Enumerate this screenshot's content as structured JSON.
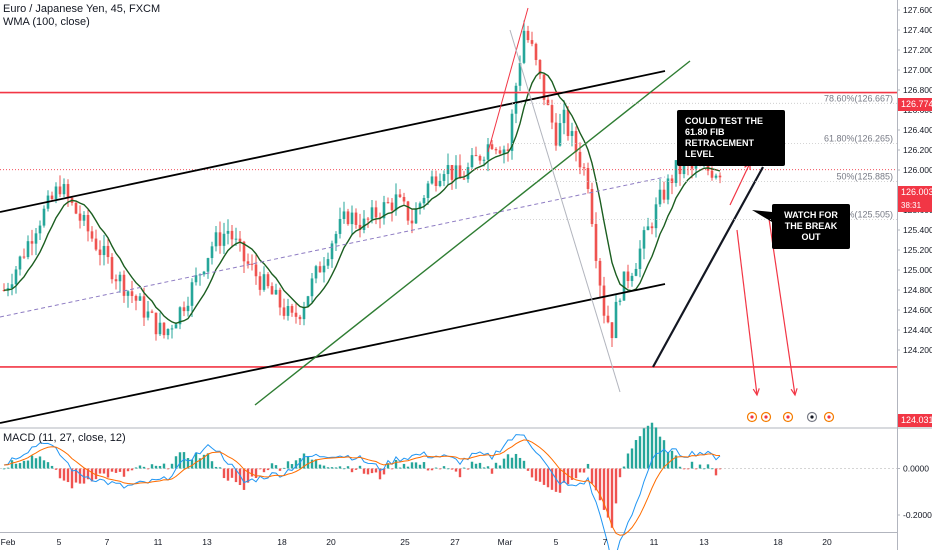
{
  "header": {
    "symbol_line": "Euro / Japanese Yen, 45, FXCM",
    "indicator_line": "WMA (100, close)",
    "macd_line": "MACD (11, 27, close, 12)"
  },
  "chart_data": [
    {
      "type": "candlestick",
      "title": "Euro / Japanese Yen, 45, FXCM",
      "x_tick_labels": [
        "Feb",
        "5",
        "7",
        "11",
        "13",
        "18",
        "20",
        "25",
        "27",
        "Mar",
        "5",
        "7",
        "11",
        "13",
        "18",
        "20"
      ],
      "y_tick_labels": [
        "127.600",
        "127.400",
        "127.200",
        "127.000",
        "126.800",
        "126.600",
        "126.400",
        "126.200",
        "126.000",
        "125.800",
        "125.600",
        "125.400",
        "125.200",
        "125.000",
        "124.800",
        "124.600",
        "124.400",
        "124.200"
      ],
      "ylim": [
        124.0,
        127.7
      ],
      "approx_close_path": [
        [
          0,
          124.8
        ],
        [
          4,
          125.1
        ],
        [
          8,
          125.45
        ],
        [
          12,
          125.7
        ],
        [
          14,
          125.85
        ],
        [
          16,
          125.7
        ],
        [
          20,
          125.45
        ],
        [
          24,
          125.2
        ],
        [
          28,
          124.95
        ],
        [
          32,
          124.75
        ],
        [
          36,
          124.55
        ],
        [
          40,
          124.35
        ],
        [
          44,
          124.6
        ],
        [
          48,
          124.9
        ],
        [
          52,
          125.25
        ],
        [
          56,
          125.4
        ],
        [
          60,
          125.1
        ],
        [
          64,
          124.9
        ],
        [
          68,
          124.7
        ],
        [
          72,
          124.5
        ],
        [
          74,
          124.6
        ],
        [
          78,
          124.95
        ],
        [
          82,
          125.3
        ],
        [
          86,
          125.55
        ],
        [
          90,
          125.45
        ],
        [
          94,
          125.6
        ],
        [
          98,
          125.7
        ],
        [
          102,
          125.5
        ],
        [
          106,
          125.85
        ],
        [
          110,
          126.05
        ],
        [
          114,
          125.9
        ],
        [
          118,
          126.1
        ],
        [
          122,
          126.3
        ],
        [
          126,
          126.2
        ],
        [
          128,
          126.85
        ],
        [
          130,
          127.4
        ],
        [
          132,
          127.2
        ],
        [
          134,
          126.9
        ],
        [
          136,
          126.6
        ],
        [
          138,
          126.35
        ],
        [
          140,
          126.5
        ],
        [
          142,
          126.3
        ],
        [
          144,
          126.1
        ],
        [
          146,
          125.9
        ],
        [
          148,
          125.2
        ],
        [
          150,
          124.6
        ],
        [
          152,
          124.4
        ],
        [
          154,
          124.8
        ],
        [
          156,
          124.95
        ],
        [
          158,
          125.1
        ],
        [
          160,
          125.3
        ],
        [
          162,
          125.5
        ],
        [
          164,
          125.7
        ],
        [
          166,
          125.85
        ],
        [
          168,
          126.0
        ]
      ],
      "wma_label": "WMA (100, close)",
      "horizontal_levels": [
        {
          "price": 126.774,
          "label": "126.774",
          "color": "#f23645"
        },
        {
          "price": 124.031,
          "label": "124.031",
          "color": "#f23645"
        }
      ],
      "current_price": {
        "label": "126.003",
        "countdown": "38:31",
        "color": "#f23645"
      },
      "fib_labels": [
        {
          "text": "78.60%(126.667)",
          "price": 126.667
        },
        {
          "text": "61.80%(126.265)",
          "price": 126.265
        },
        {
          "text": "50%(125.885)",
          "price": 125.885
        },
        {
          "text": "38.20%(125.505)",
          "price": 125.505
        }
      ],
      "annotations": [
        {
          "text": "COULD TEST THE 61.80 FIB RETRACEMENT LEVEL"
        },
        {
          "text": "WATCH FOR THE BREAK OUT"
        }
      ],
      "event_markers": [
        "event-1",
        "event-2",
        "event-3",
        "event-4",
        "event-5"
      ],
      "grid": false,
      "colors": {
        "up": "#26a69a",
        "down": "#ef5350",
        "wma": "#1b5e20",
        "accent": "#f23645"
      }
    },
    {
      "type": "macd",
      "title": "MACD (11, 27, close, 12)",
      "y_tick_labels": [
        "0.2000",
        "0.0000",
        "-0.2000",
        "-0.4000"
      ],
      "ylim": [
        -0.45,
        0.28
      ],
      "approx_macd_path": [
        [
          0,
          0.02
        ],
        [
          6,
          0.08
        ],
        [
          10,
          0.12
        ],
        [
          14,
          0.06
        ],
        [
          18,
          -0.02
        ],
        [
          24,
          -0.05
        ],
        [
          30,
          -0.08
        ],
        [
          36,
          -0.06
        ],
        [
          40,
          -0.05
        ],
        [
          46,
          0.04
        ],
        [
          52,
          0.1
        ],
        [
          56,
          0.03
        ],
        [
          60,
          -0.06
        ],
        [
          66,
          -0.03
        ],
        [
          70,
          -0.02
        ],
        [
          76,
          0.05
        ],
        [
          82,
          0.06
        ],
        [
          88,
          0.05
        ],
        [
          94,
          0.0
        ],
        [
          98,
          0.04
        ],
        [
          104,
          0.06
        ],
        [
          110,
          0.05
        ],
        [
          114,
          0.03
        ],
        [
          118,
          0.06
        ],
        [
          122,
          0.05
        ],
        [
          126,
          0.12
        ],
        [
          130,
          0.15
        ],
        [
          134,
          0.05
        ],
        [
          138,
          -0.05
        ],
        [
          142,
          -0.08
        ],
        [
          146,
          -0.05
        ],
        [
          150,
          -0.25
        ],
        [
          152,
          -0.42
        ],
        [
          154,
          -0.32
        ],
        [
          158,
          -0.15
        ],
        [
          162,
          0.04
        ],
        [
          166,
          0.08
        ],
        [
          170,
          0.06
        ],
        [
          174,
          0.07
        ],
        [
          178,
          0.05
        ],
        [
          182,
          0.09
        ]
      ],
      "colors": {
        "hist_up": "#26a69a",
        "hist_down": "#ef5350",
        "macd": "#2196f3",
        "signal": "#ff6d00"
      }
    }
  ]
}
